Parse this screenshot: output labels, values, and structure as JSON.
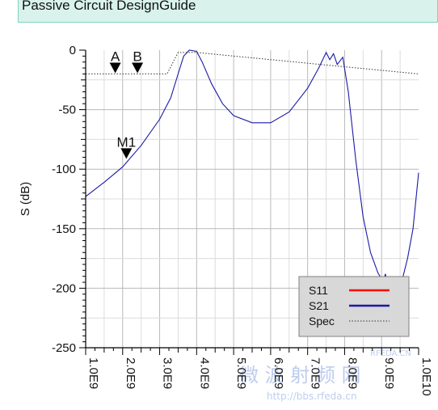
{
  "header": {
    "title": "Passive Circuit DesignGuide"
  },
  "chart_data": {
    "type": "line",
    "ylabel": "S (dB)",
    "xlim": [
      1000000000,
      10000000000
    ],
    "ylim": [
      -250,
      0
    ],
    "grid": true,
    "xticks": [
      {
        "value": 1000000000,
        "label": "1.0E9"
      },
      {
        "value": 2000000000,
        "label": "2.0E9"
      },
      {
        "value": 3000000000,
        "label": "3.0E9"
      },
      {
        "value": 4000000000,
        "label": "4.0E9"
      },
      {
        "value": 5000000000,
        "label": "5.0E9"
      },
      {
        "value": 6000000000,
        "label": "6.0E9"
      },
      {
        "value": 7000000000,
        "label": "7.0E9"
      },
      {
        "value": 8000000000,
        "label": "8.0E9"
      },
      {
        "value": 9000000000,
        "label": "9.0E9"
      },
      {
        "value": 10000000000,
        "label": "1.0E10"
      }
    ],
    "yticks": [
      {
        "value": 0,
        "label": "0"
      },
      {
        "value": -50,
        "label": "-50"
      },
      {
        "value": -100,
        "label": "-100"
      },
      {
        "value": -150,
        "label": "-150"
      },
      {
        "value": -200,
        "label": "-200"
      },
      {
        "value": -250,
        "label": "-250"
      }
    ],
    "legend_position": "bottom-right",
    "series": [
      {
        "name": "S11",
        "color": "#ff0000",
        "style": "solid",
        "x": [],
        "y": []
      },
      {
        "name": "S21",
        "color": "#1a1aa6",
        "style": "solid",
        "x": [
          1000000000,
          1500000000,
          2000000000,
          2500000000,
          3000000000,
          3300000000,
          3500000000,
          3650000000,
          3800000000,
          4000000000,
          4150000000,
          4400000000,
          4700000000,
          5000000000,
          5500000000,
          6000000000,
          6500000000,
          7000000000,
          7300000000,
          7500000000,
          7600000000,
          7700000000,
          7800000000,
          7950000000,
          8100000000,
          8300000000,
          8500000000,
          8700000000,
          8900000000,
          9050000000,
          9100000000,
          9200000000,
          9300000000,
          9400000000,
          9500000000,
          9700000000,
          9850000000,
          10000000000
        ],
        "y": [
          -123,
          -111,
          -98,
          -80,
          -58,
          -40,
          -20,
          -5,
          0,
          -1,
          -10,
          -28,
          -45,
          -55,
          -61,
          -61,
          -52,
          -32,
          -15,
          -2,
          -8,
          -3,
          -12,
          -6,
          -35,
          -92,
          -140,
          -170,
          -187,
          -195,
          -188,
          -200,
          -192,
          -200,
          -200,
          -175,
          -150,
          -103
        ]
      },
      {
        "name": "Spec",
        "color": "#333333",
        "style": "dotted",
        "x": [
          1000000000,
          3200000000,
          3500000000,
          4000000000,
          10000000000
        ],
        "y": [
          -20,
          -20,
          -2,
          -2,
          -20
        ]
      }
    ],
    "markers": [
      {
        "name": "A",
        "x": 1800000000,
        "y": -20
      },
      {
        "name": "B",
        "x": 2400000000,
        "y": -20
      },
      {
        "name": "M1",
        "x": 2100000000,
        "y": -92
      }
    ]
  },
  "watermark": {
    "site_name": "微 波 射 频 网",
    "url": "http://bbs.rfeda.cn",
    "tag": "RFEDA.CN"
  }
}
